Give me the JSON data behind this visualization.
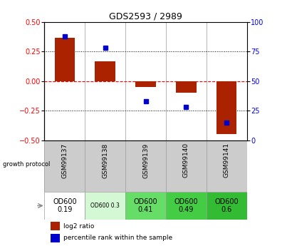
{
  "title": "GDS2593 / 2989",
  "samples": [
    "GSM99137",
    "GSM99138",
    "GSM99139",
    "GSM99140",
    "GSM99141"
  ],
  "log2_ratio": [
    0.37,
    0.17,
    -0.05,
    -0.1,
    -0.45
  ],
  "percentile_rank": [
    88,
    78,
    33,
    28,
    15
  ],
  "ylim": [
    -0.5,
    0.5
  ],
  "yticks_left": [
    -0.5,
    -0.25,
    0,
    0.25,
    0.5
  ],
  "yticks_right": [
    0,
    25,
    50,
    75,
    100
  ],
  "bar_color": "#aa2200",
  "dot_color": "#0000cc",
  "growth_protocol_labels": [
    "OD600\n0.19",
    "OD600 0.3",
    "OD600\n0.41",
    "OD600\n0.49",
    "OD600\n0.6"
  ],
  "growth_protocol_colors": [
    "#ffffff",
    "#d4f7d4",
    "#66dd66",
    "#44cc44",
    "#33bb33"
  ],
  "protocol_fontsize_small": [
    false,
    true,
    false,
    false,
    false
  ],
  "bg_color": "#ffffff",
  "label_row_bg": "#cccccc",
  "grid_line_color": "#999999"
}
